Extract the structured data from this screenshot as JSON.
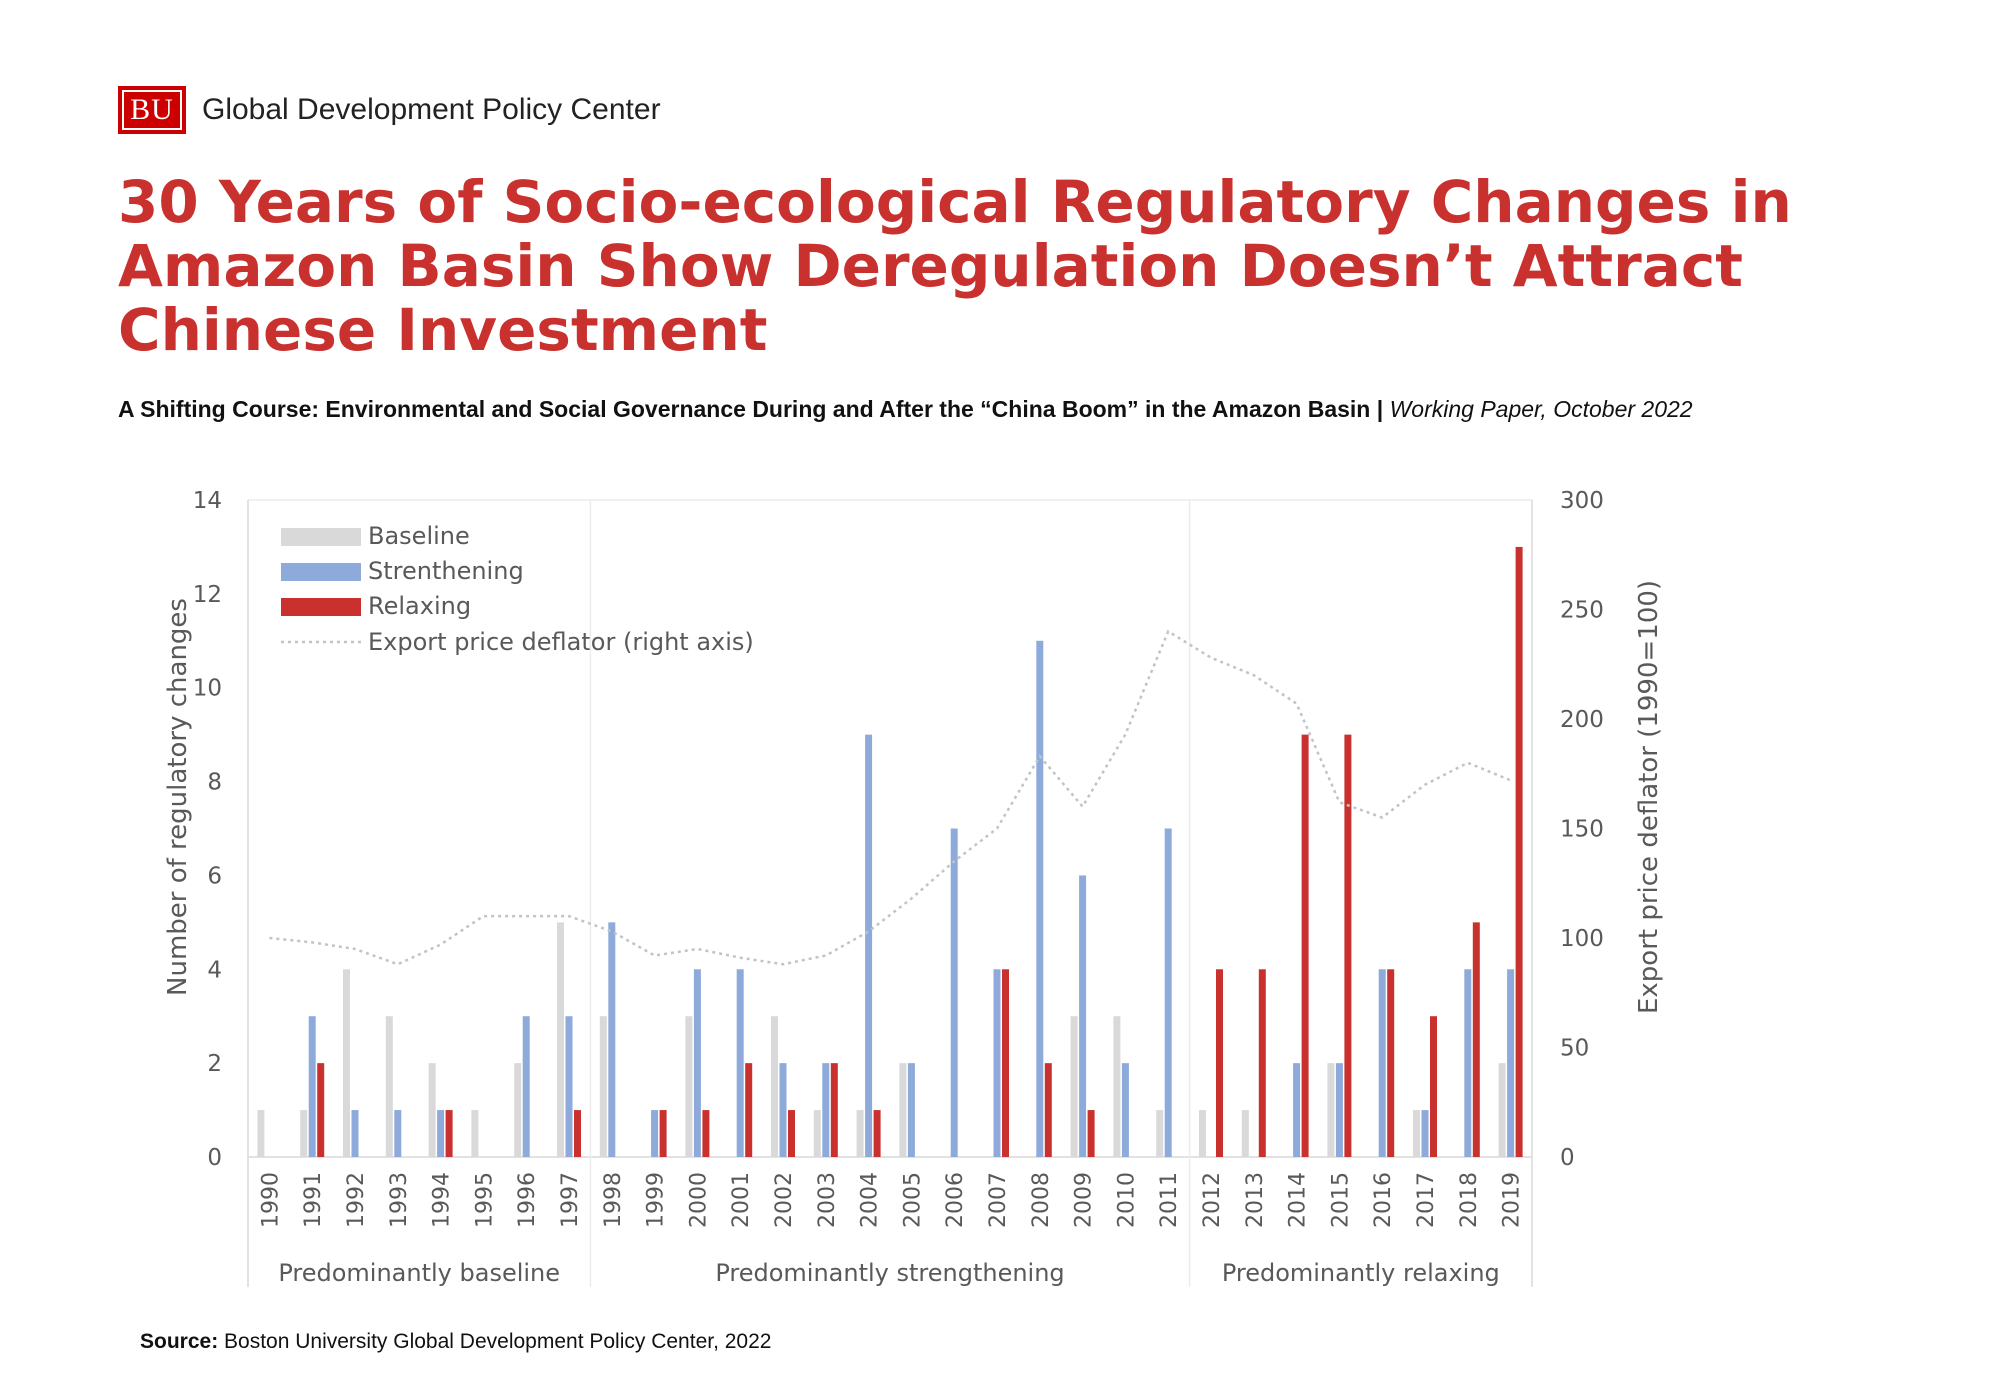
{
  "header": {
    "logo_text": "BU",
    "org_name": "Global Development Policy Center"
  },
  "title": "30 Years of Socio-ecological Regulatory Changes in Amazon Basin Show Deregulation Doesn’t Attract Chinese Investment",
  "subtitle": {
    "main": "A Shifting Course: Environmental and Social Governance During and After the “China Boom” in the Amazon Basin",
    "separator": " | ",
    "italic": "Working Paper, October 2022"
  },
  "source": {
    "label": "Source:",
    "text": " Boston University Global Development Policy Center, 2022"
  },
  "colors": {
    "baseline": "#d9d9d9",
    "strengthening": "#8eaadb",
    "relaxing": "#c8312e",
    "deflator": "#bfc4c9",
    "title": "#c8312e"
  },
  "chart_data": {
    "type": "bar",
    "ylabel": "Number of regulatory changes",
    "y2label": "Export price deflator (1990=100)",
    "ylim": [
      0,
      14
    ],
    "yticks": [
      0,
      2,
      4,
      6,
      8,
      10,
      12,
      14
    ],
    "y2lim": [
      0,
      300
    ],
    "y2ticks": [
      0,
      50,
      100,
      150,
      200,
      250,
      300
    ],
    "legend_position": "top-left",
    "categories": [
      "1990",
      "1991",
      "1992",
      "1993",
      "1994",
      "1995",
      "1996",
      "1997",
      "1998",
      "1999",
      "2000",
      "2001",
      "2002",
      "2003",
      "2004",
      "2005",
      "2006",
      "2007",
      "2008",
      "2009",
      "2010",
      "2011",
      "2012",
      "2013",
      "2014",
      "2015",
      "2016",
      "2017",
      "2018",
      "2019"
    ],
    "series": [
      {
        "name": "Baseline",
        "values": [
          1,
          1,
          4,
          3,
          2,
          1,
          2,
          5,
          3,
          0,
          3,
          0,
          3,
          1,
          1,
          2,
          0,
          0,
          0,
          3,
          3,
          1,
          1,
          1,
          0,
          2,
          0,
          1,
          0,
          2
        ]
      },
      {
        "name": "Strenthening",
        "values": [
          0,
          3,
          1,
          1,
          1,
          0,
          3,
          3,
          5,
          1,
          4,
          4,
          2,
          2,
          9,
          2,
          7,
          4,
          11,
          6,
          2,
          7,
          0,
          0,
          2,
          2,
          4,
          1,
          4,
          4
        ]
      },
      {
        "name": "Relaxing",
        "values": [
          0,
          2,
          0,
          0,
          1,
          0,
          0,
          1,
          0,
          1,
          1,
          2,
          1,
          2,
          1,
          0,
          0,
          4,
          2,
          1,
          0,
          0,
          4,
          4,
          9,
          9,
          4,
          3,
          5,
          13
        ]
      }
    ],
    "line": {
      "name": "Export price deflator (right axis)",
      "axis": "right",
      "values": [
        100,
        98,
        95,
        88,
        97,
        110,
        110,
        110,
        103,
        92,
        95,
        91,
        88,
        92,
        103,
        118,
        135,
        150,
        183,
        160,
        193,
        240,
        228,
        220,
        207,
        162,
        155,
        170,
        180,
        172
      ]
    },
    "periods": [
      {
        "label": "Predominantly baseline",
        "start": "1990",
        "end": "1997"
      },
      {
        "label": "Predominantly strengthening",
        "start": "1998",
        "end": "2011"
      },
      {
        "label": "Predominantly relaxing",
        "start": "2012",
        "end": "2019"
      }
    ]
  }
}
